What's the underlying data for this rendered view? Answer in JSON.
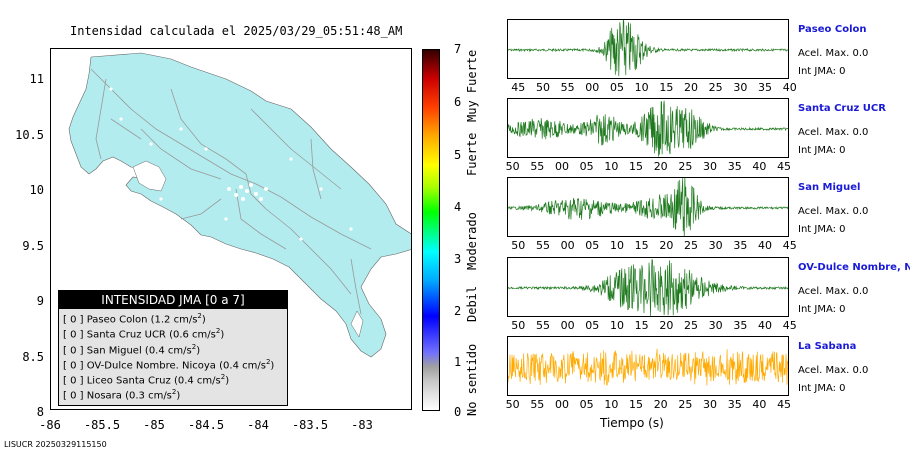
{
  "map": {
    "title": "Intensidad calculada el 2025/03/29_05:51:48_AM",
    "yticks": [
      "11",
      "10.5",
      "10",
      "9.5",
      "9",
      "8.5",
      "8"
    ],
    "xticks": [
      "-86",
      "-85.5",
      "-85",
      "-84.5",
      "-84",
      "-83.5",
      "-83"
    ],
    "land_color": "#b2ecee",
    "legend": {
      "title": "INTENSIDAD JMA [0 a 7]",
      "rows": [
        {
          "level": "[ 0 ]",
          "station": "Paseo Colon",
          "value": "(1.2 cm/s",
          "sup": "2",
          "close": ")"
        },
        {
          "level": "[ 0 ]",
          "station": "Santa Cruz UCR",
          "value": "(0.6 cm/s",
          "sup": "2",
          "close": ")"
        },
        {
          "level": "[ 0 ]",
          "station": "San Miguel",
          "value": "(0.4 cm/s",
          "sup": "2",
          "close": ")"
        },
        {
          "level": "[ 0 ]",
          "station": "OV-Dulce Nombre. Nicoya",
          "value": "(0.4 cm/s",
          "sup": "2",
          "close": ")"
        },
        {
          "level": "[ 0 ]",
          "station": "Liceo Santa Cruz",
          "value": "(0.4 cm/s",
          "sup": "2",
          "close": ")"
        },
        {
          "level": "[ 0 ]",
          "station": "Nosara",
          "value": "(0.3 cm/s",
          "sup": "2",
          "close": ")"
        }
      ]
    }
  },
  "colorbar": {
    "ticks": [
      "7",
      "6",
      "5",
      "4",
      "3",
      "2",
      "1",
      "0"
    ],
    "labels": [
      "Muy Fuerte",
      "Fuerte",
      "Moderado",
      "Debil",
      "No sentido"
    ]
  },
  "seismograms": {
    "xlabel": "Tiempo (s)",
    "panels": [
      {
        "name": "Paseo Colon",
        "acel": "Acel. Max. 0.0",
        "int": "Int JMA: 0",
        "color": "#1f7a1f",
        "ticks": [
          "45",
          "50",
          "55",
          "00",
          "05",
          "10",
          "15",
          "20",
          "25",
          "30",
          "35",
          "40"
        ]
      },
      {
        "name": "Santa Cruz UCR",
        "acel": "Acel. Max. 0.0",
        "int": "Int JMA: 0",
        "color": "#1f7a1f",
        "ticks": [
          "50",
          "55",
          "00",
          "05",
          "10",
          "15",
          "20",
          "25",
          "30",
          "35",
          "40",
          "45"
        ]
      },
      {
        "name": "San Miguel",
        "acel": "Acel. Max. 0.0",
        "int": "Int JMA: 0",
        "color": "#1f7a1f",
        "ticks": [
          "50",
          "55",
          "00",
          "05",
          "10",
          "15",
          "20",
          "25",
          "30",
          "35",
          "40",
          "45"
        ]
      },
      {
        "name": "OV-Dulce Nombre, Nicoya",
        "acel": "Acel. Max. 0.0",
        "int": "Int JMA: 0",
        "color": "#1f7a1f",
        "ticks": [
          "50",
          "55",
          "00",
          "05",
          "10",
          "15",
          "20",
          "25",
          "30",
          "35",
          "40",
          "45"
        ]
      },
      {
        "name": "La Sabana",
        "acel": "Acel. Max. 0.0",
        "int": "Int JMA: 0",
        "color": "#ffaa00",
        "ticks": [
          "50",
          "55",
          "00",
          "05",
          "10",
          "15",
          "20",
          "25",
          "30",
          "35",
          "40",
          "45"
        ]
      }
    ]
  },
  "footer": "LISUCR 20250329115150",
  "chart_data": {
    "type": "heatmap",
    "title": "Intensidad calculada el 2025/03/29_05:51:48_AM",
    "xlabel": "",
    "ylabel": "",
    "xlim": [
      -86,
      -82.5
    ],
    "ylim": [
      8,
      11.3
    ],
    "colorbar_range": [
      0,
      7
    ],
    "values": [
      0,
      0,
      0,
      0,
      0,
      0
    ],
    "categories": [
      "Paseo Colon",
      "Santa Cruz UCR",
      "San Miguel",
      "OV-Dulce Nombre. Nicoya",
      "Liceo Santa Cruz",
      "Nosara"
    ],
    "peak_acceleration_cm_s2": [
      1.2,
      0.6,
      0.4,
      0.4,
      0.4,
      0.3
    ]
  }
}
